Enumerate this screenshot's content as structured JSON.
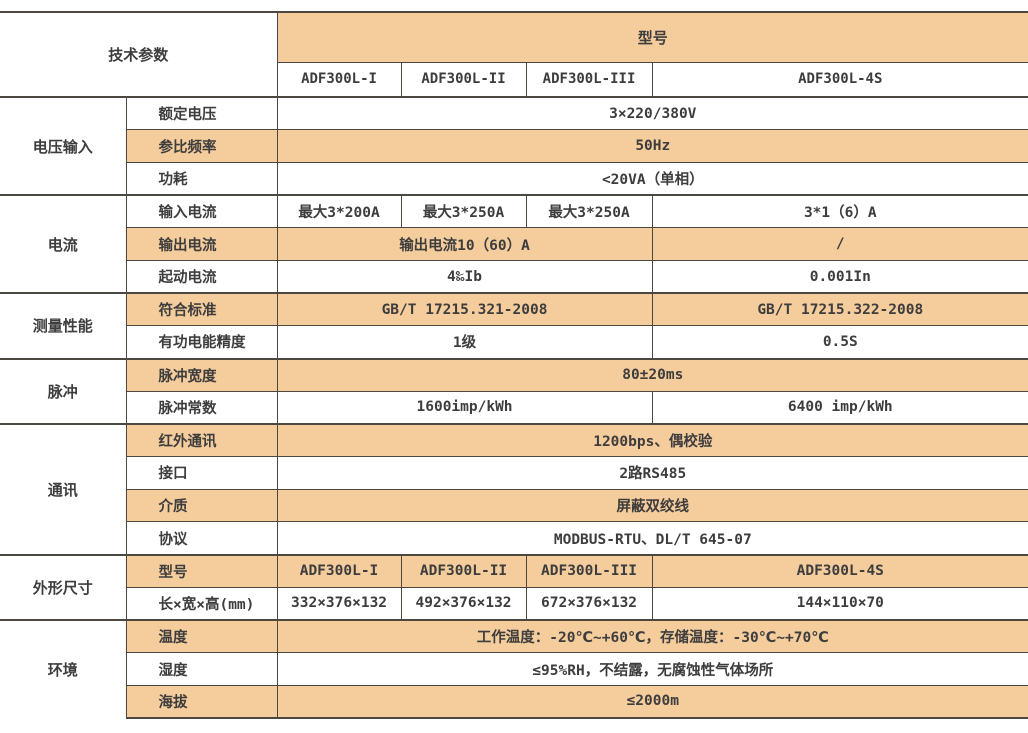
{
  "colors": {
    "row_shade": "#F5CD9D",
    "border": "#4C4841",
    "text": "#3D3D3D",
    "background": "#FFFFFF"
  },
  "header": {
    "tech_params_label": "技术参数",
    "model_label": "型号",
    "models": [
      "ADF300L-I",
      "ADF300L-II",
      "ADF300L-III",
      "ADF300L-4S"
    ]
  },
  "sections": [
    {
      "group": "电压输入",
      "rows": [
        {
          "label": "额定电压",
          "shade": false,
          "cells": [
            {
              "text": "3×220/380V",
              "span": 4
            }
          ]
        },
        {
          "label": "参比频率",
          "shade": true,
          "cells": [
            {
              "text": "50Hz",
              "span": 4
            }
          ]
        },
        {
          "label": "功耗",
          "shade": false,
          "cells": [
            {
              "text": "<20VA（单相）",
              "span": 4
            }
          ]
        }
      ]
    },
    {
      "group": "电流",
      "rows": [
        {
          "label": "输入电流",
          "shade": false,
          "cells": [
            {
              "text": "最大3*200A",
              "span": 1
            },
            {
              "text": "最大3*250A",
              "span": 1
            },
            {
              "text": "最大3*250A",
              "span": 1
            },
            {
              "text": "3*1（6）A",
              "span": 1
            }
          ]
        },
        {
          "label": "输出电流",
          "shade": true,
          "cells": [
            {
              "text": "输出电流10（60）A",
              "span": 3
            },
            {
              "text": "/",
              "span": 1
            }
          ]
        },
        {
          "label": "起动电流",
          "shade": false,
          "cells": [
            {
              "text": "4‰Ib",
              "span": 3
            },
            {
              "text": "0.001In",
              "span": 1
            }
          ]
        }
      ]
    },
    {
      "group": "测量性能",
      "rows": [
        {
          "label": "符合标准",
          "shade": true,
          "cells": [
            {
              "text": "GB/T 17215.321-2008",
              "span": 3
            },
            {
              "text": "GB/T 17215.322-2008",
              "span": 1
            }
          ]
        },
        {
          "label": "有功电能精度",
          "shade": false,
          "cells": [
            {
              "text": "1级",
              "span": 3
            },
            {
              "text": "0.5S",
              "span": 1
            }
          ]
        }
      ]
    },
    {
      "group": "脉冲",
      "rows": [
        {
          "label": "脉冲宽度",
          "shade": true,
          "cells": [
            {
              "text": "80±20ms",
              "span": 4
            }
          ]
        },
        {
          "label": "脉冲常数",
          "shade": false,
          "cells": [
            {
              "text": "1600imp/kWh",
              "span": 3
            },
            {
              "text": "6400 imp/kWh",
              "span": 1
            }
          ]
        }
      ]
    },
    {
      "group": "通讯",
      "rows": [
        {
          "label": "红外通讯",
          "shade": true,
          "cells": [
            {
              "text": "1200bps、偶校验",
              "span": 4
            }
          ]
        },
        {
          "label": "接口",
          "shade": false,
          "cells": [
            {
              "text": "2路RS485",
              "span": 4
            }
          ]
        },
        {
          "label": "介质",
          "shade": true,
          "cells": [
            {
              "text": "屏蔽双绞线",
              "span": 4
            }
          ]
        },
        {
          "label": "协议",
          "shade": false,
          "cells": [
            {
              "text": "MODBUS-RTU、DL/T 645-07",
              "span": 4
            }
          ]
        }
      ]
    },
    {
      "group": "外形尺寸",
      "rows": [
        {
          "label": "型号",
          "shade": true,
          "cells": [
            {
              "text": "ADF300L-I",
              "span": 1
            },
            {
              "text": "ADF300L-II",
              "span": 1
            },
            {
              "text": "ADF300L-III",
              "span": 1
            },
            {
              "text": "ADF300L-4S",
              "span": 1
            }
          ]
        },
        {
          "label": "长×宽×高(mm)",
          "shade": false,
          "cells": [
            {
              "text": "332×376×132",
              "span": 1
            },
            {
              "text": "492×376×132",
              "span": 1
            },
            {
              "text": "672×376×132",
              "span": 1
            },
            {
              "text": "144×110×70",
              "span": 1
            }
          ]
        }
      ]
    },
    {
      "group": "环境",
      "rows": [
        {
          "label": "温度",
          "shade": true,
          "cells": [
            {
              "text": "工作温度：-20℃~+60℃，存储温度：-30℃~+70℃",
              "span": 4
            }
          ]
        },
        {
          "label": "湿度",
          "shade": false,
          "cells": [
            {
              "text": "≤95%RH，不结露，无腐蚀性气体场所",
              "span": 4
            }
          ]
        },
        {
          "label": "海拔",
          "shade": true,
          "cells": [
            {
              "text": "≤2000m",
              "span": 4
            }
          ]
        }
      ]
    }
  ]
}
